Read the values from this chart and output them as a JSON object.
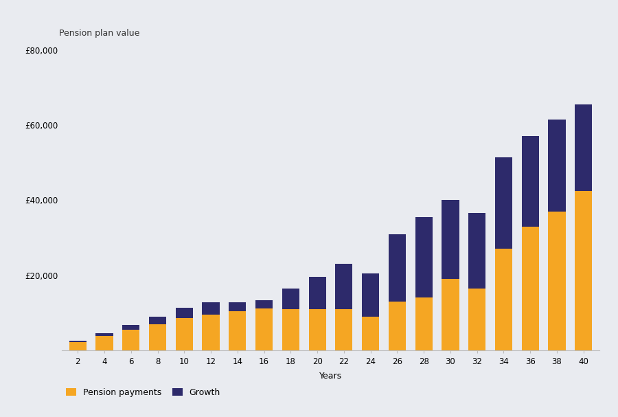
{
  "years": [
    2,
    4,
    6,
    8,
    10,
    12,
    14,
    16,
    18,
    20,
    22,
    24,
    26,
    28,
    30,
    32,
    34,
    36,
    38,
    40
  ],
  "pension_payments": [
    2200,
    3800,
    5500,
    7000,
    8500,
    9500,
    10500,
    11200,
    11000,
    11000,
    11000,
    9000,
    13000,
    14000,
    19000,
    16500,
    27000,
    33000,
    37000,
    42500
  ],
  "growth": [
    400,
    700,
    1200,
    2000,
    2800,
    3200,
    2300,
    2200,
    5500,
    8500,
    12000,
    11500,
    18000,
    21500,
    21000,
    20000,
    24500,
    24000,
    24500,
    23000
  ],
  "bar_color_payments": "#F5A623",
  "bar_color_growth": "#2D2A6B",
  "background_color": "#E9EBF0",
  "xlabel": "Years",
  "ylabel": "Pension plan value",
  "legend_payments": "Pension payments",
  "legend_growth": "Growth",
  "ylim": [
    0,
    80000
  ],
  "yticks": [
    20000,
    40000,
    60000,
    80000
  ],
  "ytick_labels": [
    "£20,000",
    "£40,000",
    "£60,000",
    "£80,000"
  ],
  "ylabel_fontsize": 9,
  "axis_fontsize": 9,
  "tick_fontsize": 8.5,
  "legend_fontsize": 9
}
